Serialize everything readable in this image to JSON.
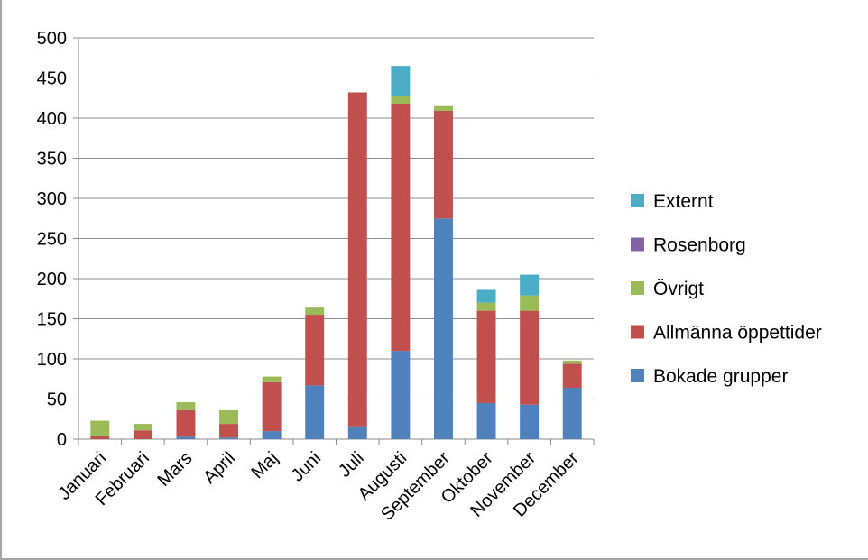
{
  "chart_data": {
    "type": "bar",
    "stacked": true,
    "title": "",
    "xlabel": "",
    "ylabel": "",
    "ylim": [
      0,
      500
    ],
    "yticks": [
      0,
      50,
      100,
      150,
      200,
      250,
      300,
      350,
      400,
      450,
      500
    ],
    "grid": true,
    "legend_position": "right",
    "categories": [
      "Januari",
      "Februari",
      "Mars",
      "April",
      "Maj",
      "Juni",
      "Juli",
      "Augusti",
      "September",
      "Oktober",
      "November",
      "December"
    ],
    "series": [
      {
        "name": "Bokade grupper",
        "color": "#4f81bd",
        "values": [
          0,
          0,
          3,
          2,
          10,
          67,
          16,
          110,
          275,
          45,
          43,
          64
        ]
      },
      {
        "name": "Allmänna öppettider",
        "color": "#c0504d",
        "values": [
          4,
          11,
          33,
          17,
          61,
          88,
          416,
          308,
          134,
          115,
          117,
          30
        ]
      },
      {
        "name": "Övrigt",
        "color": "#9bbb59",
        "values": [
          19,
          8,
          10,
          17,
          7,
          10,
          0,
          10,
          7,
          10,
          19,
          4
        ]
      },
      {
        "name": "Rosenborg",
        "color": "#8064a2",
        "values": [
          0,
          0,
          0,
          0,
          0,
          0,
          0,
          0,
          0,
          0,
          0,
          0
        ]
      },
      {
        "name": "Externt",
        "color": "#4bacc6",
        "values": [
          0,
          0,
          0,
          0,
          0,
          0,
          0,
          37,
          0,
          16,
          26,
          0
        ]
      }
    ],
    "legend_order": [
      "Externt",
      "Rosenborg",
      "Övrigt",
      "Allmänna öppettider",
      "Bokade grupper"
    ]
  }
}
